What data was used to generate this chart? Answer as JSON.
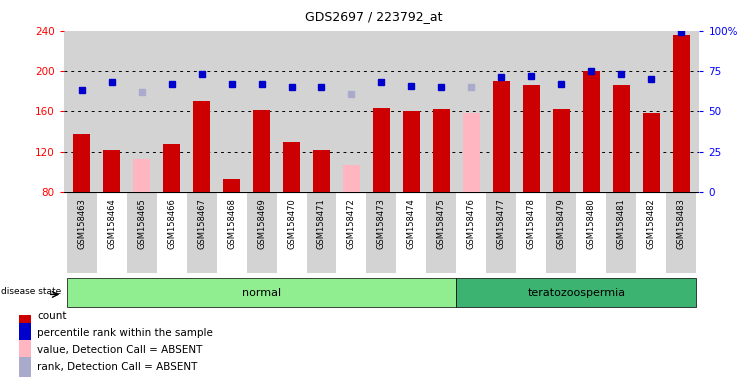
{
  "title": "GDS2697 / 223792_at",
  "samples": [
    "GSM158463",
    "GSM158464",
    "GSM158465",
    "GSM158466",
    "GSM158467",
    "GSM158468",
    "GSM158469",
    "GSM158470",
    "GSM158471",
    "GSM158472",
    "GSM158473",
    "GSM158474",
    "GSM158475",
    "GSM158476",
    "GSM158477",
    "GSM158478",
    "GSM158479",
    "GSM158480",
    "GSM158481",
    "GSM158482",
    "GSM158483"
  ],
  "count_values": [
    138,
    122,
    null,
    128,
    170,
    93,
    161,
    130,
    122,
    null,
    163,
    160,
    162,
    null,
    190,
    186,
    162,
    200,
    186,
    158,
    236
  ],
  "absent_value_indices": [
    2,
    9,
    13
  ],
  "absent_values": [
    113,
    107,
    158
  ],
  "percentile_rank": [
    63,
    68,
    null,
    67,
    73,
    67,
    67,
    65,
    65,
    null,
    68,
    66,
    65,
    null,
    71,
    72,
    67,
    75,
    73,
    70,
    99
  ],
  "absent_rank_indices": [
    2,
    9,
    13
  ],
  "absent_ranks": [
    62,
    61,
    65
  ],
  "groups": [
    {
      "label": "normal",
      "start": 0,
      "end": 12,
      "color": "#90ee90"
    },
    {
      "label": "teratozoospermia",
      "start": 13,
      "end": 20,
      "color": "#3cb371"
    }
  ],
  "disease_state_label": "disease state",
  "ylim_left": [
    80,
    240
  ],
  "ylim_right": [
    0,
    100
  ],
  "yticks_left": [
    80,
    120,
    160,
    200,
    240
  ],
  "yticks_right": [
    0,
    25,
    50,
    75,
    100
  ],
  "ytick_labels_right": [
    "0",
    "25",
    "50",
    "75",
    "100%"
  ],
  "bar_color": "#cc0000",
  "absent_bar_color": "#ffb6c1",
  "rank_color": "#0000cc",
  "absent_rank_color": "#aaaacc",
  "grid_color": "#000000",
  "bg_color": "#ffffff",
  "plot_bg_color": "#d3d3d3",
  "legend_items": [
    {
      "color": "#cc0000",
      "label": "count"
    },
    {
      "color": "#0000cc",
      "label": "percentile rank within the sample"
    },
    {
      "color": "#ffb6c1",
      "label": "value, Detection Call = ABSENT"
    },
    {
      "color": "#aaaacc",
      "label": "rank, Detection Call = ABSENT"
    }
  ]
}
